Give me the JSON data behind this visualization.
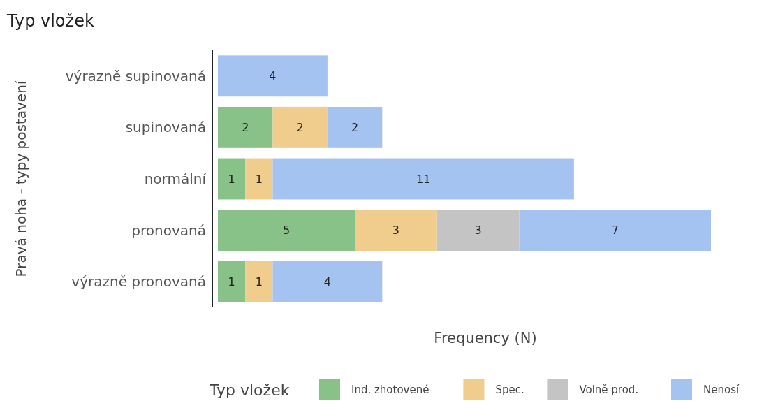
{
  "chart_data": {
    "type": "bar",
    "orientation": "horizontal",
    "stacked": true,
    "title": "Typ vložek",
    "xlabel": "Frequency (N)",
    "ylabel": "Pravá noha - typy postavení",
    "legend_title": "Typ vložek",
    "legend": "bottom",
    "data_labels": true,
    "categories": [
      "výrazně supinovaná",
      "supinovaná",
      "normální",
      "pronovaná",
      "výrazně pronovaná"
    ],
    "series": [
      {
        "name": "Ind. zhotovené",
        "color": "#88c289",
        "values": [
          null,
          2,
          1,
          5,
          1
        ]
      },
      {
        "name": "Spec.",
        "color": "#f0cd8c",
        "values": [
          null,
          2,
          1,
          3,
          1
        ]
      },
      {
        "name": "Volně prod.",
        "color": "#c4c4c4",
        "values": [
          null,
          null,
          null,
          3,
          null
        ]
      },
      {
        "name": "Nenosí",
        "color": "#a4c3f0",
        "values": [
          4,
          2,
          11,
          7,
          4
        ]
      }
    ]
  }
}
